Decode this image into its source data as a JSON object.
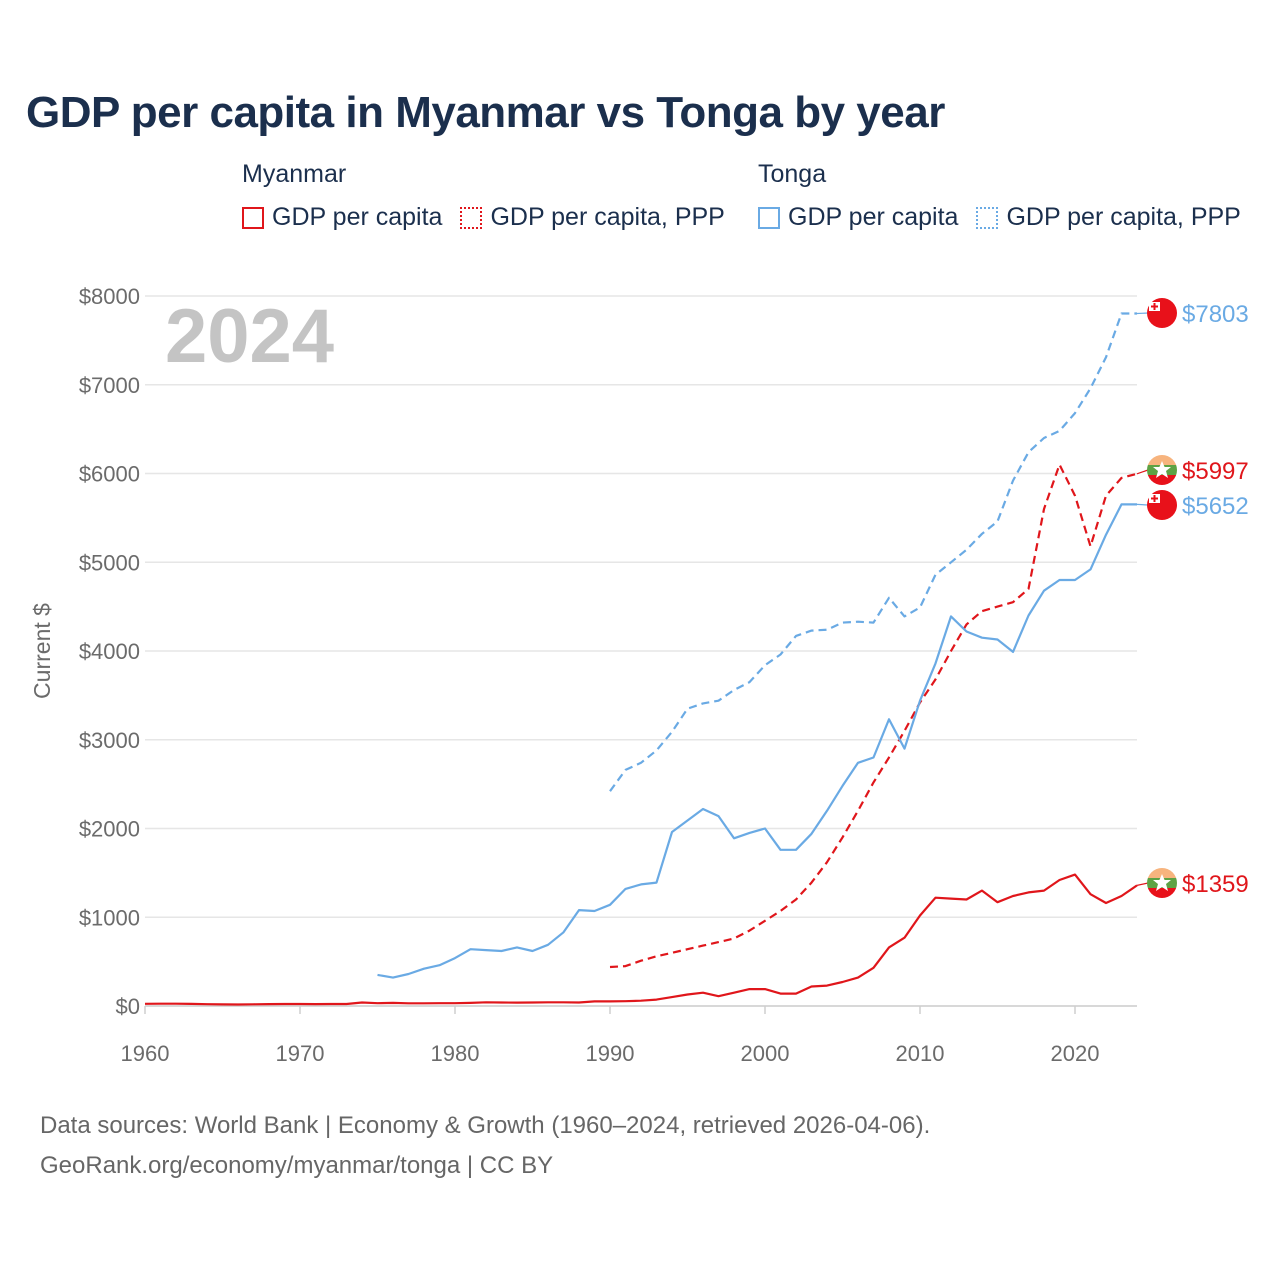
{
  "title": "GDP per capita in Myanmar vs Tonga by year",
  "legend": {
    "groups": [
      {
        "name": "Myanmar",
        "items": [
          "GDP per capita",
          "GDP per capita, PPP"
        ]
      },
      {
        "name": "Tonga",
        "items": [
          "GDP per capita",
          "GDP per capita, PPP"
        ]
      }
    ]
  },
  "footer": {
    "line1": "Data sources: World Bank | Economy & Growth (1960–2024, retrieved 2026-04-06).",
    "line2": "GeoRank.org/economy/myanmar/tonga | CC BY"
  },
  "colors": {
    "myanmar": "#e0161b",
    "tonga": "#6aaae4",
    "grid": "#e6e6e6"
  },
  "chart_data": {
    "type": "line",
    "year_label": "2024",
    "ylabel": "Current $",
    "xlim": [
      1960,
      2024
    ],
    "ylim": [
      0,
      8000
    ],
    "xticks": [
      1960,
      1970,
      1980,
      1990,
      2000,
      2010,
      2020
    ],
    "xtick_labels": [
      "1960",
      "1970",
      "1980",
      "1990",
      "2000",
      "2010",
      "2020"
    ],
    "yticks": [
      0,
      1000,
      2000,
      3000,
      4000,
      5000,
      6000,
      7000,
      8000
    ],
    "ytick_labels": [
      "$0",
      "$1000",
      "$2000",
      "$3000",
      "$4000",
      "$5000",
      "$6000",
      "$7000",
      "$8000"
    ],
    "series": [
      {
        "name": "Myanmar GDP per capita",
        "country": "myanmar",
        "dashed": false,
        "end_label": "$1359",
        "x": [
          1960,
          1961,
          1962,
          1963,
          1964,
          1965,
          1966,
          1967,
          1968,
          1969,
          1970,
          1971,
          1972,
          1973,
          1974,
          1975,
          1976,
          1977,
          1978,
          1979,
          1980,
          1981,
          1982,
          1983,
          1984,
          1985,
          1986,
          1987,
          1988,
          1989,
          1990,
          1991,
          1992,
          1993,
          1994,
          1995,
          1996,
          1997,
          1998,
          1999,
          2000,
          2001,
          2002,
          2003,
          2004,
          2005,
          2006,
          2007,
          2008,
          2009,
          2010,
          2011,
          2012,
          2013,
          2014,
          2015,
          2016,
          2017,
          2018,
          2019,
          2020,
          2021,
          2022,
          2023,
          2024
        ],
        "values": [
          25,
          26,
          26,
          24,
          20,
          18,
          17,
          19,
          21,
          22,
          22,
          21,
          22,
          23,
          40,
          32,
          35,
          30,
          30,
          31,
          32,
          35,
          42,
          40,
          38,
          40,
          42,
          42,
          40,
          52,
          52,
          54,
          60,
          72,
          100,
          130,
          150,
          110,
          150,
          190,
          190,
          140,
          140,
          220,
          230,
          270,
          320,
          430,
          660,
          770,
          1020,
          1220,
          1210,
          1200,
          1300,
          1170,
          1240,
          1280,
          1300,
          1420,
          1480,
          1260,
          1160,
          1240,
          1359
        ]
      },
      {
        "name": "Myanmar GDP per capita, PPP",
        "country": "myanmar",
        "dashed": true,
        "end_label": "$5997",
        "x": [
          1990,
          1991,
          1992,
          1993,
          1994,
          1995,
          1996,
          1997,
          1998,
          1999,
          2000,
          2001,
          2002,
          2003,
          2004,
          2005,
          2006,
          2007,
          2008,
          2009,
          2010,
          2011,
          2012,
          2013,
          2014,
          2015,
          2016,
          2017,
          2018,
          2019,
          2020,
          2021,
          2022,
          2023,
          2024
        ],
        "values": [
          440,
          450,
          510,
          560,
          600,
          640,
          680,
          720,
          760,
          850,
          960,
          1070,
          1200,
          1390,
          1620,
          1900,
          2200,
          2520,
          2800,
          3100,
          3420,
          3680,
          4000,
          4300,
          4450,
          4500,
          4550,
          4700,
          5600,
          6100,
          5750,
          5180,
          5750,
          5950,
          5997
        ]
      },
      {
        "name": "Tonga GDP per capita",
        "country": "tonga",
        "dashed": false,
        "end_label": "$5652",
        "x": [
          1975,
          1976,
          1977,
          1978,
          1979,
          1980,
          1981,
          1982,
          1983,
          1984,
          1985,
          1986,
          1987,
          1988,
          1989,
          1990,
          1991,
          1992,
          1993,
          1994,
          1995,
          1996,
          1997,
          1998,
          1999,
          2000,
          2001,
          2002,
          2003,
          2004,
          2005,
          2006,
          2007,
          2008,
          2009,
          2010,
          2011,
          2012,
          2013,
          2014,
          2015,
          2016,
          2017,
          2018,
          2019,
          2020,
          2021,
          2022,
          2023,
          2024
        ],
        "values": [
          350,
          320,
          360,
          420,
          460,
          540,
          640,
          630,
          620,
          660,
          620,
          690,
          830,
          1080,
          1070,
          1140,
          1320,
          1370,
          1390,
          1960,
          2090,
          2220,
          2140,
          1890,
          1950,
          2000,
          1760,
          1760,
          1940,
          2200,
          2480,
          2740,
          2800,
          3230,
          2900,
          3440,
          3860,
          4390,
          4220,
          4150,
          4130,
          3990,
          4400,
          4680,
          4800,
          4800,
          4920,
          5310,
          5652,
          5652
        ]
      },
      {
        "name": "Tonga GDP per capita, PPP",
        "country": "tonga",
        "dashed": true,
        "end_label": "$7803",
        "x": [
          1990,
          1991,
          1992,
          1993,
          1994,
          1995,
          1996,
          1997,
          1998,
          1999,
          2000,
          2001,
          2002,
          2003,
          2004,
          2005,
          2006,
          2007,
          2008,
          2009,
          2010,
          2011,
          2012,
          2013,
          2014,
          2015,
          2016,
          2017,
          2018,
          2019,
          2020,
          2021,
          2022,
          2023,
          2024
        ],
        "values": [
          2420,
          2660,
          2740,
          2880,
          3090,
          3350,
          3410,
          3440,
          3560,
          3650,
          3840,
          3960,
          4170,
          4230,
          4240,
          4320,
          4330,
          4320,
          4600,
          4390,
          4490,
          4860,
          5000,
          5140,
          5320,
          5460,
          5920,
          6240,
          6400,
          6480,
          6680,
          6960,
          7310,
          7803,
          7803
        ]
      }
    ]
  }
}
